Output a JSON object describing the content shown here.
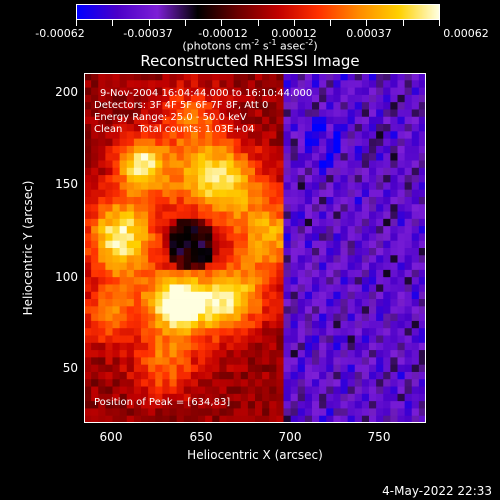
{
  "colorbar": {
    "ticks": [
      "-0.00062",
      "-0.00037",
      "-0.00012",
      "0.00012",
      "0.00037",
      "0.00062"
    ],
    "units": {
      "prefix": "(photons cm",
      "e1": "-2",
      "mid1": " s",
      "e2": "-1",
      "mid2": " asec",
      "e3": "-2",
      "suffix": ")"
    },
    "colors": [
      "#0000ff",
      "#4a00c8",
      "#7d1fd6",
      "#000000",
      "#6a0000",
      "#c00000",
      "#ff3000",
      "#ff8a00",
      "#ffd000",
      "#ffffe0"
    ]
  },
  "chart_data": {
    "type": "heatmap",
    "title": "Reconstructed RHESSI Image",
    "xlabel": "Heliocentric X (arcsec)",
    "ylabel": "Heliocentric Y (arcsec)",
    "xlim": [
      580,
      772
    ],
    "ylim": [
      17,
      208
    ],
    "xticks": [
      "600",
      "650",
      "700",
      "750"
    ],
    "yticks": [
      "50",
      "100",
      "150",
      "200"
    ],
    "annotations": {
      "time": "9-Nov-2004 16:04:44.000 to 16:10:44.000",
      "detectors": "Detectors: 3F 4F 5F 6F 7F 8F, Att 0",
      "energy": "Energy Range: 25.0 - 50.0 keV",
      "clean": "Clean     Total counts: 1.03E+04",
      "peak": "Position of Peak = [634,83]"
    },
    "peak": {
      "x": 634,
      "y": 83
    },
    "color_scale": {
      "min": -0.00062,
      "max": 0.00062
    },
    "grid": {
      "nx": 48,
      "ny": 48
    }
  },
  "timestamp": "4-May-2022 22:33"
}
